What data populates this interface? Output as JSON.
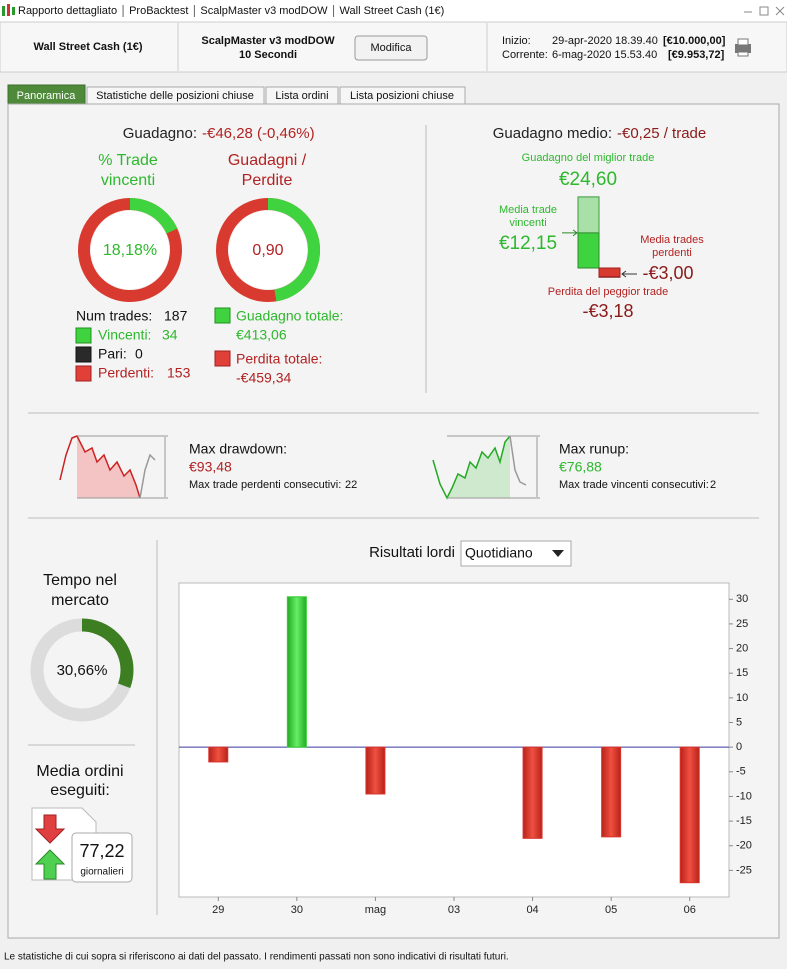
{
  "window": {
    "title_items": [
      "Rapporto dettagliato",
      "ProBacktest",
      "ScalpMaster v3 modDOW",
      "Wall Street Cash (1€)"
    ]
  },
  "header": {
    "instrument": "Wall Street Cash (1€)",
    "strategy": "ScalpMaster v3 modDOW",
    "timeframe": "10 Secondi",
    "button": "Modifica",
    "start_label": "Inizio:",
    "start_date": "29-apr-2020 18.39.40",
    "start_capital": "[€10.000,00]",
    "current_label": "Corrente:",
    "current_date": "6-mag-2020 15.53.40",
    "current_capital": "[€9.953,72]"
  },
  "tabs": [
    "Panoramica",
    "Statistiche delle posizioni chiuse",
    "Lista ordini",
    "Lista posizioni chiuse"
  ],
  "summary": {
    "gain_label": "Guadagno:",
    "gain": "-€46,28 (-0,46%)",
    "win_rate": {
      "title": [
        "% Trade",
        "vincenti"
      ],
      "value": 18.18,
      "label": "18,18%"
    },
    "ratio": {
      "title": [
        "Guadagni /",
        "Perdite"
      ],
      "label": "0,90"
    },
    "num_trades_label": "Num trades:",
    "num_trades": 187,
    "winners": {
      "label": "Vincenti:",
      "value": 34
    },
    "even": {
      "label": "Pari:",
      "value": 0
    },
    "losers": {
      "label": "Perdenti:",
      "value": 153
    },
    "total_gain": {
      "label": "Guadagno totale:",
      "value": 413.06,
      "value_label": "€413,06"
    },
    "total_loss": {
      "label": "Perdita totale:",
      "value": -459.34,
      "value_label": "-€459,34"
    }
  },
  "average": {
    "label": "Guadagno medio:",
    "value": "-€0,25 / trade",
    "best": {
      "label": "Guadagno del miglior trade",
      "value": 24.6,
      "value_label": "€24,60"
    },
    "avg_win": {
      "label": [
        "Media trade",
        "vincenti"
      ],
      "value": 12.15,
      "value_label": "€12,15"
    },
    "avg_loss": {
      "label": [
        "Media trades",
        "perdenti"
      ],
      "value": -3.0,
      "value_label": "-€3,00"
    },
    "worst": {
      "label": "Perdita del peggior trade",
      "value": -3.18,
      "value_label": "-€3,18"
    }
  },
  "drawdown": {
    "label": "Max drawdown:",
    "value": "€93,48",
    "streak_label": "Max trade perdenti consecutivi:",
    "streak": 22
  },
  "runup": {
    "label": "Max runup:",
    "value": "€76,88",
    "streak_label": "Max trade vincenti consecutivi:",
    "streak": 2
  },
  "market_time": {
    "title": [
      "Tempo nel",
      "mercato"
    ],
    "value": 30.66,
    "label": "30,66%"
  },
  "orders": {
    "title": [
      "Media ordini",
      "eseguiti:"
    ],
    "value": "77,22",
    "unit": "giornalieri"
  },
  "chart_data": {
    "type": "bar",
    "title": "Risultati lordi",
    "period": "Quotidiano",
    "categories": [
      "29",
      "30",
      "mag",
      "03",
      "04",
      "05",
      "06"
    ],
    "values": [
      -3,
      30.5,
      -9.5,
      null,
      -18.5,
      -18.2,
      -27.5
    ],
    "colors": {
      "positive": "#33cc33",
      "negative": "#d9342b"
    },
    "ylim": [
      -30.4,
      33.3
    ],
    "yticks": [
      -25,
      -20,
      -15,
      -10,
      -5,
      0,
      5,
      10,
      15,
      20,
      25,
      30
    ],
    "y_axis_side": "right"
  },
  "footer": "Le statistiche di cui sopra si riferiscono ai dati del passato. I rendimenti passati non sono indicativi di risultati futuri."
}
